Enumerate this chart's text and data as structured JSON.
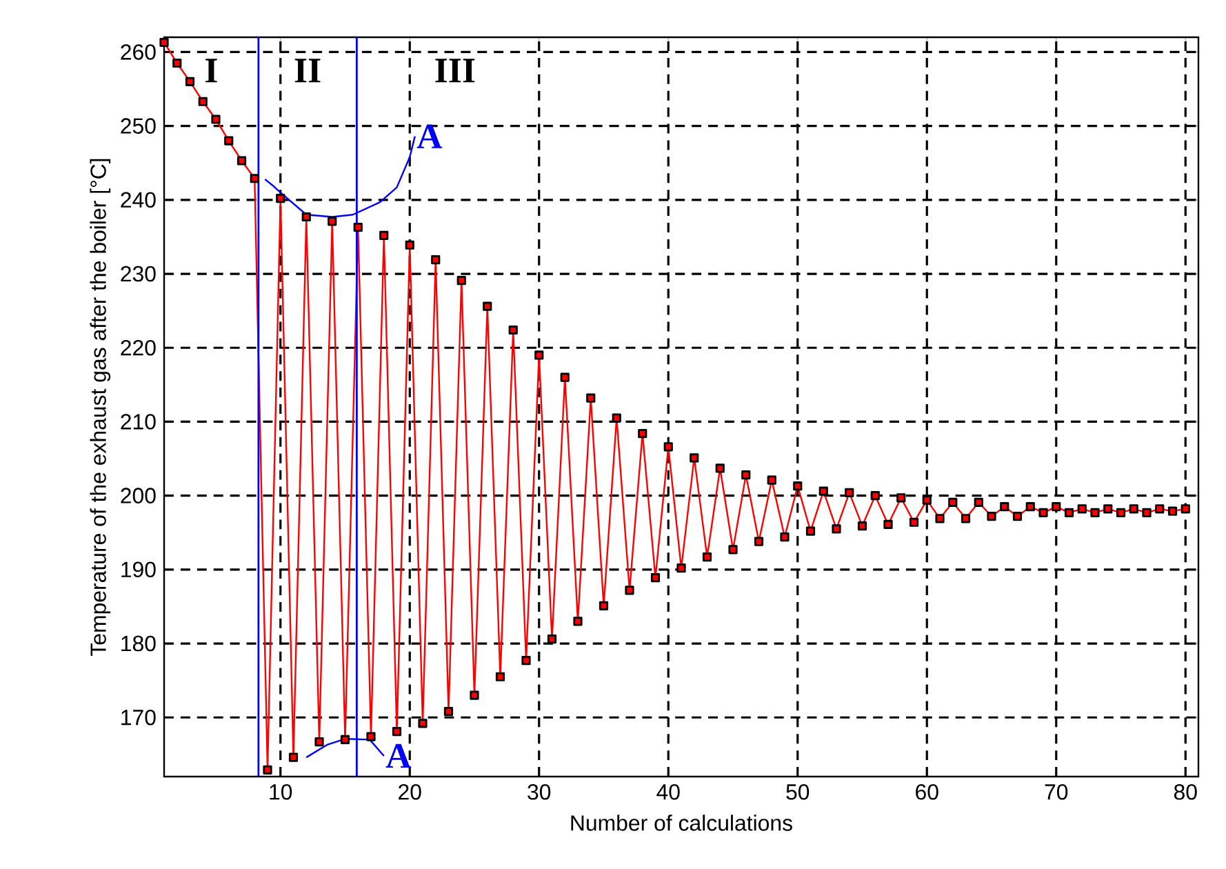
{
  "chart_data": {
    "type": "line",
    "xlabel": "Number of calculations",
    "ylabel": "Temperature of the exhaust gas after the boiler [°C]",
    "xlim": [
      1,
      81
    ],
    "ylim": [
      162,
      262
    ],
    "xticks": [
      10,
      20,
      30,
      40,
      50,
      60,
      70,
      80
    ],
    "yticks": [
      170,
      180,
      190,
      200,
      210,
      220,
      230,
      240,
      250,
      260
    ],
    "grid": true,
    "series": [
      {
        "color": "#ff0000",
        "marker": "square",
        "x": [
          1,
          2,
          3,
          4,
          5,
          6,
          7,
          8,
          9,
          10,
          11,
          12,
          13,
          14,
          15,
          16,
          17,
          18,
          19,
          20,
          21,
          22,
          23,
          24,
          25,
          26,
          27,
          28,
          29,
          30,
          31,
          32,
          33,
          34,
          35,
          36,
          37,
          38,
          39,
          40,
          41,
          42,
          43,
          44,
          45,
          46,
          47,
          48,
          49,
          50,
          51,
          52,
          53,
          54,
          55,
          56,
          57,
          58,
          59,
          60,
          61,
          62,
          63,
          64,
          65,
          66,
          67,
          68,
          69,
          70,
          71,
          72,
          73,
          74,
          75,
          76,
          77,
          78,
          79,
          80
        ],
        "values": [
          261.3,
          258.5,
          256,
          253.3,
          250.9,
          248,
          245.3,
          242.9,
          162.9,
          240.2,
          164.6,
          237.7,
          166.7,
          237.1,
          167.0,
          236.3,
          167.4,
          235.2,
          168.1,
          233.9,
          169.2,
          231.9,
          170.8,
          229.1,
          173.0,
          225.6,
          175.5,
          222.4,
          177.7,
          219.0,
          180.6,
          216.0,
          183.0,
          213.2,
          185.1,
          210.5,
          187.2,
          208.4,
          188.9,
          206.6,
          190.2,
          205.1,
          191.7,
          203.7,
          192.7,
          202.8,
          193.8,
          202.1,
          194.4,
          201.3,
          195.2,
          200.6,
          195.5,
          200.4,
          195.9,
          200.0,
          196.1,
          199.7,
          196.4,
          199.4,
          196.9,
          199.1,
          196.9,
          199.1,
          197.2,
          198.5,
          197.2,
          198.5,
          197.7,
          198.5,
          197.7,
          198.2,
          197.7,
          198.2,
          197.7,
          198.2,
          197.7,
          198.2,
          197.9,
          198.2
        ]
      },
      {
        "type": "line",
        "color": "#0000ff",
        "marker": "none",
        "x": [
          8.8,
          9.5,
          10,
          12,
          14,
          15.6,
          17.7,
          19,
          20,
          20.4
        ],
        "values": [
          242.8,
          241.8,
          241.0,
          238.0,
          237.7,
          238.0,
          239.7,
          241.7,
          245.8,
          248.6
        ]
      },
      {
        "type": "line",
        "color": "#0000ff",
        "marker": "none",
        "x": [
          12,
          13.6,
          15,
          16.9,
          18
        ],
        "values": [
          164.6,
          166.3,
          167.1,
          167.0,
          164.8
        ]
      }
    ],
    "ref_lines": [
      {
        "axis": "x",
        "value": 8.3,
        "color": "#0000ff"
      },
      {
        "axis": "x",
        "value": 15.9,
        "color": "#0000ff"
      }
    ],
    "annotations": [
      "I",
      "II",
      "III",
      "A",
      "A"
    ]
  }
}
